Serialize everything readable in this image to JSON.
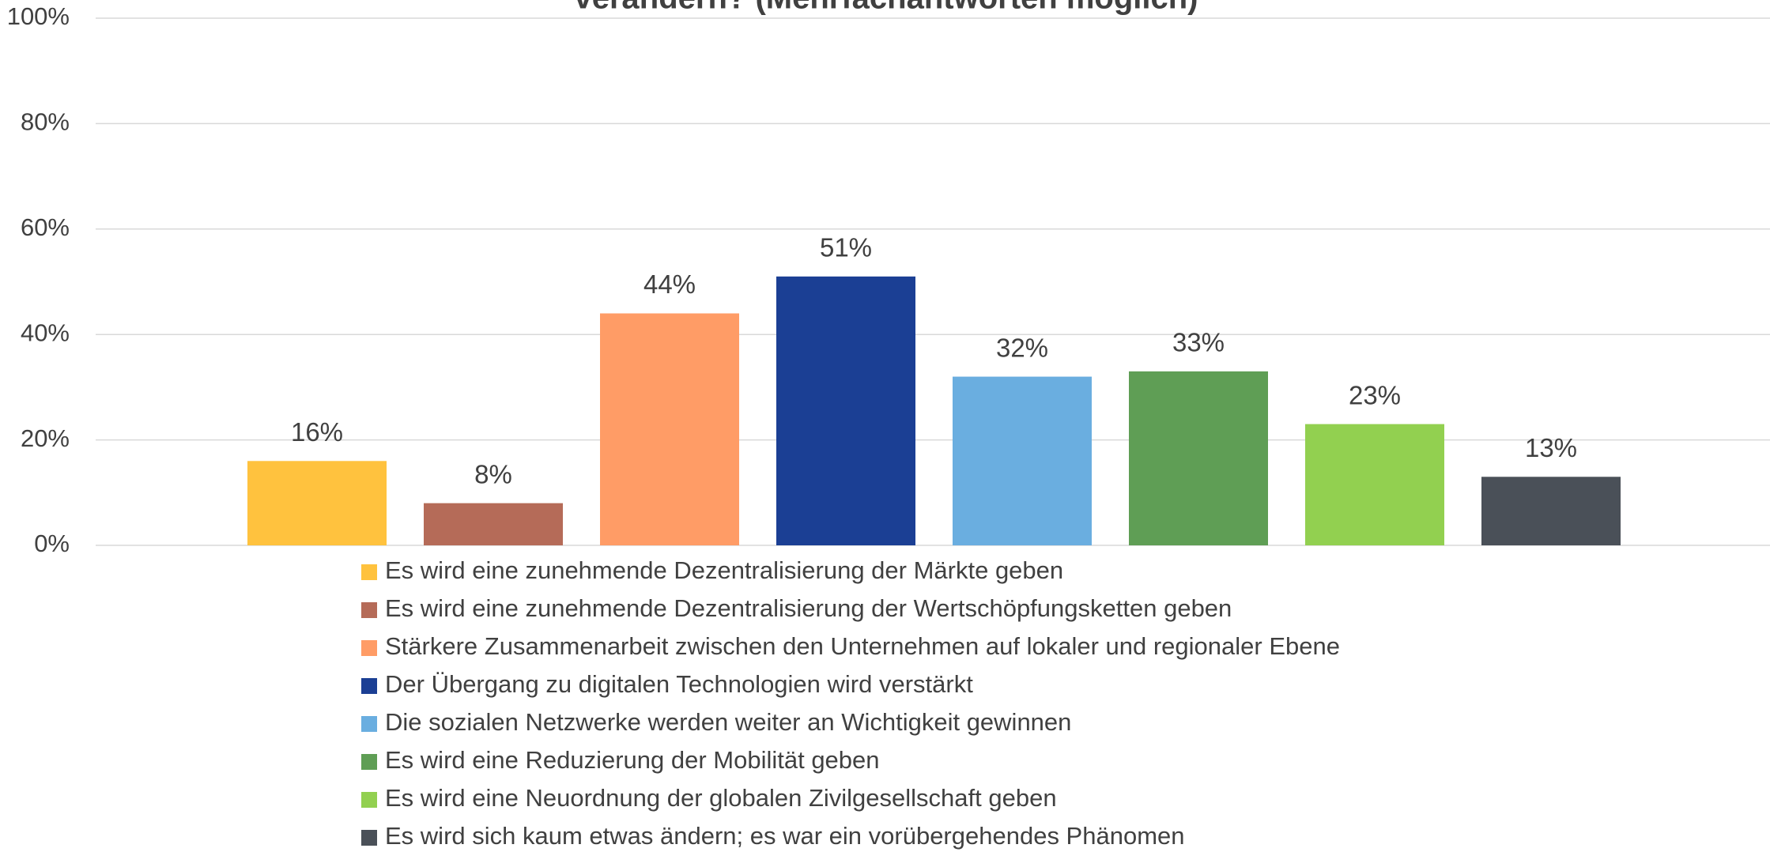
{
  "chart_data": {
    "type": "bar",
    "title": "verändern? (Mehrfachantworten möglich)",
    "series": [
      {
        "name": "Es wird eine zunehmende Dezentralisierung der Märkte geben",
        "color": "#ffc23e",
        "values": [
          16
        ],
        "value_labels": [
          "16%"
        ]
      },
      {
        "name": "Es wird eine zunehmende Dezentralisierung der Wertschöpfungsketten geben",
        "color": "#b56b58",
        "values": [
          8
        ],
        "value_labels": [
          "8%"
        ]
      },
      {
        "name": "Stärkere Zusammenarbeit zwischen den Unternehmen auf lokaler und regionaler Ebene",
        "color": "#ff9c66",
        "values": [
          44
        ],
        "value_labels": [
          "44%"
        ]
      },
      {
        "name": "Der Übergang zu digitalen Technologien wird verstärkt",
        "color": "#1b3f94",
        "values": [
          51
        ],
        "value_labels": [
          "51%"
        ]
      },
      {
        "name": "Die sozialen Netzwerke werden weiter an Wichtigkeit gewinnen",
        "color": "#6aaee0",
        "values": [
          32
        ],
        "value_labels": [
          "32%"
        ]
      },
      {
        "name": "Es wird eine Reduzierung der Mobilität geben",
        "color": "#5f9e55",
        "values": [
          33
        ],
        "value_labels": [
          "33%"
        ]
      },
      {
        "name": "Es wird eine Neuordnung der globalen Zivilgesellschaft geben",
        "color": "#92d050",
        "values": [
          23
        ],
        "value_labels": [
          "23%"
        ]
      },
      {
        "name": "Es wird sich kaum etwas ändern; es war ein vorübergehendes Phänomen",
        "color": "#4a5058",
        "values": [
          13
        ],
        "value_labels": [
          "13%"
        ]
      }
    ],
    "ylim": [
      0,
      100
    ],
    "yticks": [
      {
        "value": 0,
        "label": "0%"
      },
      {
        "value": 20,
        "label": "20%"
      },
      {
        "value": 40,
        "label": "40%"
      },
      {
        "value": 60,
        "label": "60%"
      },
      {
        "value": 80,
        "label": "80%"
      },
      {
        "value": 100,
        "label": "100%"
      }
    ],
    "grid": true,
    "legend": "bottom"
  }
}
